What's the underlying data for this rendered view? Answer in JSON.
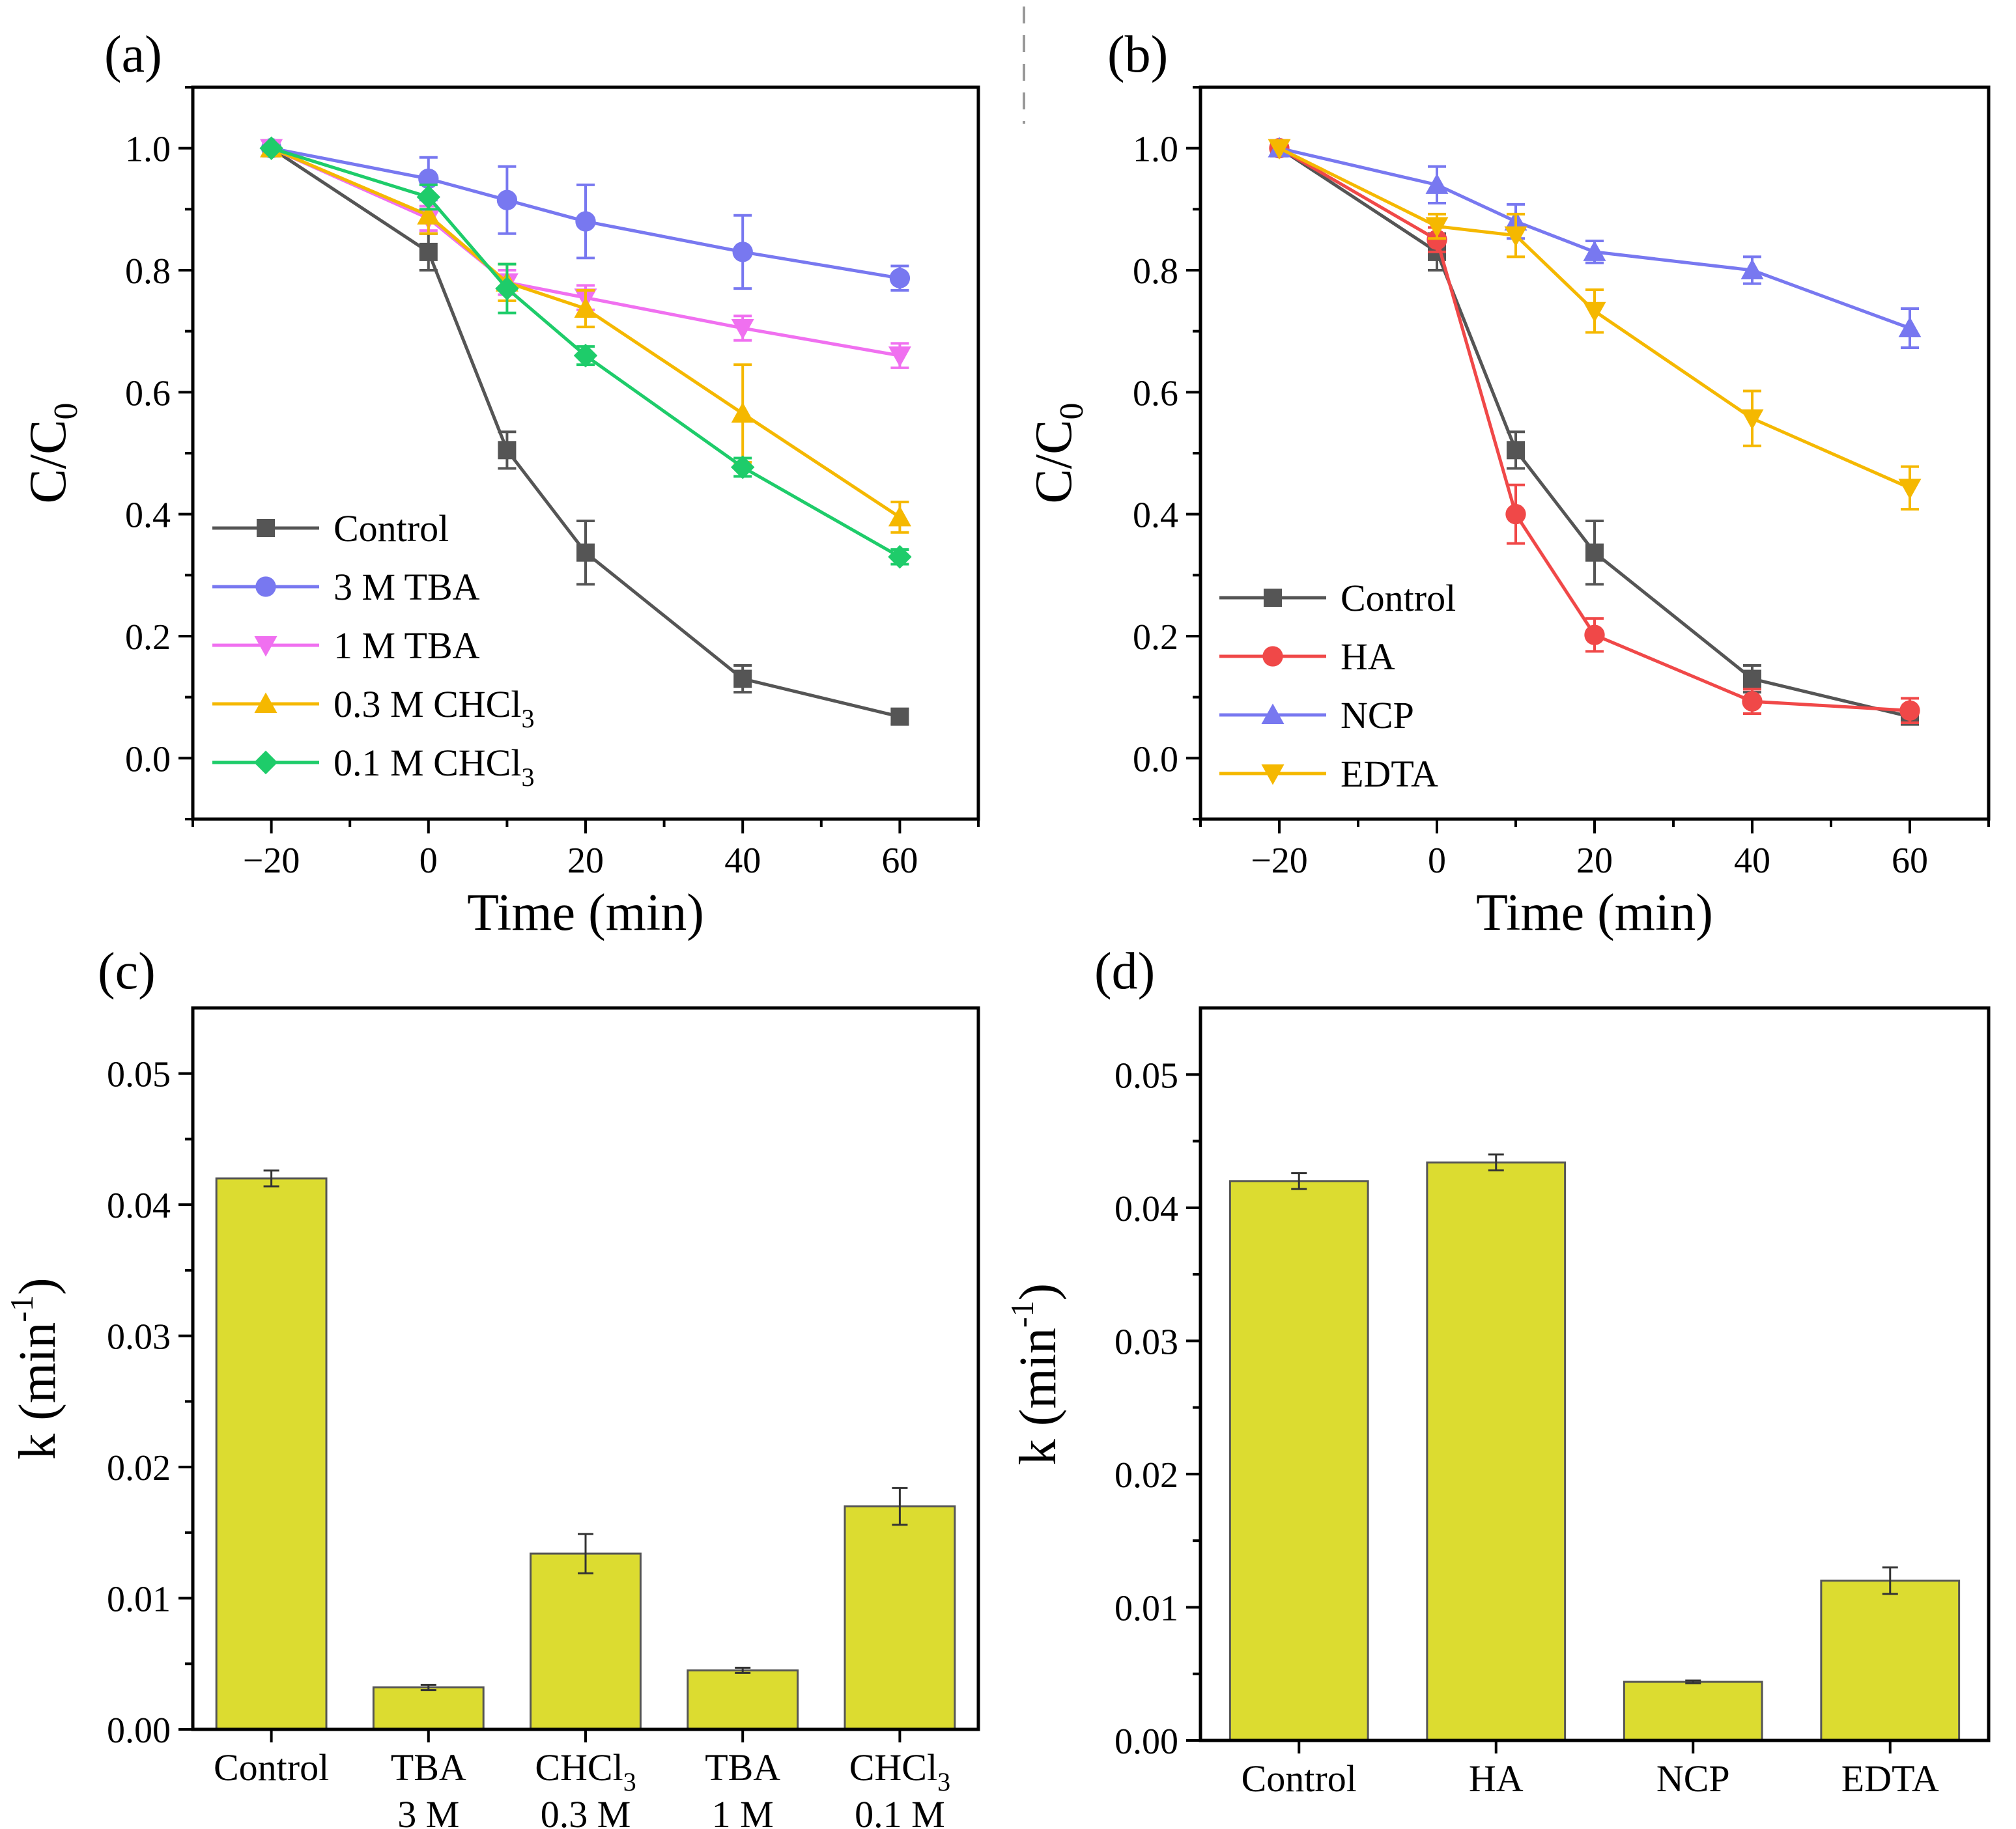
{
  "chart_data": [
    {
      "panel": "(a)",
      "type": "line",
      "xlabel": "Time (min)",
      "ylabel_main": "C/C",
      "ylabel_sub": "0",
      "xlim": [
        -30,
        70
      ],
      "ylim": [
        -0.1,
        1.1
      ],
      "xticks": [
        -20,
        0,
        20,
        40,
        60
      ],
      "yticks": [
        0.0,
        0.2,
        0.4,
        0.6,
        0.8,
        1.0
      ],
      "xtick_labels": [
        "−20",
        "0",
        "20",
        "40",
        "60"
      ],
      "ytick_labels": [
        "0.0",
        "0.2",
        "0.4",
        "0.6",
        "0.8",
        "1.0"
      ],
      "legend_position": "bottom-left",
      "x": [
        -20,
        0,
        10,
        20,
        40,
        60
      ],
      "series": [
        {
          "name": "Control",
          "name_main": "Control",
          "name_sub": "",
          "color": "#555555",
          "marker": "square",
          "values": [
            1.0,
            0.83,
            0.505,
            0.337,
            0.13,
            0.068
          ],
          "errors": [
            0.0,
            0.03,
            0.03,
            0.052,
            0.022,
            0.012
          ]
        },
        {
          "name": "3 M TBA",
          "name_main": "3 M TBA",
          "name_sub": "",
          "color": "#7878F0",
          "marker": "circle",
          "values": [
            1.0,
            0.95,
            0.915,
            0.88,
            0.83,
            0.787
          ],
          "errors": [
            0.0,
            0.035,
            0.055,
            0.06,
            0.06,
            0.02
          ]
        },
        {
          "name": "1 M TBA",
          "name_main": "1 M TBA",
          "name_sub": "",
          "color": "#F070F0",
          "marker": "triangle-down",
          "values": [
            1.0,
            0.885,
            0.78,
            0.755,
            0.705,
            0.66
          ],
          "errors": [
            0.0,
            0.02,
            0.02,
            0.02,
            0.02,
            0.02
          ]
        },
        {
          "name": "0.3 M CHCl3",
          "name_main": "0.3 M CHCl",
          "name_sub": "3",
          "color": "#F5B800",
          "marker": "triangle-up",
          "values": [
            1.0,
            0.89,
            0.78,
            0.737,
            0.565,
            0.395
          ],
          "errors": [
            0.0,
            0.03,
            0.03,
            0.03,
            0.08,
            0.025
          ]
        },
        {
          "name": "0.1 M CHCl3",
          "name_main": "0.1 M CHCl",
          "name_sub": "3",
          "color": "#1ECC6A",
          "marker": "diamond",
          "values": [
            1.0,
            0.92,
            0.77,
            0.66,
            0.477,
            0.33
          ],
          "errors": [
            0.0,
            0.02,
            0.04,
            0.015,
            0.015,
            0.012
          ]
        }
      ]
    },
    {
      "panel": "(b)",
      "type": "line",
      "xlabel": "Time (min)",
      "ylabel_main": "C/C",
      "ylabel_sub": "0",
      "xlim": [
        -30,
        70
      ],
      "ylim": [
        -0.1,
        1.1
      ],
      "xticks": [
        -20,
        0,
        20,
        40,
        60
      ],
      "yticks": [
        0.0,
        0.2,
        0.4,
        0.6,
        0.8,
        1.0
      ],
      "xtick_labels": [
        "−20",
        "0",
        "20",
        "40",
        "60"
      ],
      "ytick_labels": [
        "0.0",
        "0.2",
        "0.4",
        "0.6",
        "0.8",
        "1.0"
      ],
      "legend_position": "bottom-left",
      "x": [
        -20,
        0,
        10,
        20,
        40,
        60
      ],
      "series": [
        {
          "name": "Control",
          "name_main": "Control",
          "name_sub": "",
          "color": "#555555",
          "marker": "square",
          "values": [
            1.0,
            0.83,
            0.505,
            0.337,
            0.13,
            0.068
          ],
          "errors": [
            0.0,
            0.03,
            0.03,
            0.052,
            0.022,
            0.012
          ]
        },
        {
          "name": "HA",
          "name_main": "HA",
          "name_sub": "",
          "color": "#F04848",
          "marker": "circle",
          "values": [
            1.0,
            0.85,
            0.4,
            0.202,
            0.093,
            0.078
          ],
          "errors": [
            0.0,
            0.02,
            0.048,
            0.027,
            0.02,
            0.02
          ]
        },
        {
          "name": "NCP",
          "name_main": "NCP",
          "name_sub": "",
          "color": "#7878F0",
          "marker": "triangle-up",
          "values": [
            1.0,
            0.94,
            0.88,
            0.83,
            0.8,
            0.705
          ],
          "errors": [
            0.0,
            0.03,
            0.028,
            0.018,
            0.022,
            0.032
          ]
        },
        {
          "name": "EDTA",
          "name_main": "EDTA",
          "name_sub": "",
          "color": "#F5B800",
          "marker": "triangle-down",
          "values": [
            1.0,
            0.872,
            0.857,
            0.733,
            0.557,
            0.443
          ],
          "errors": [
            0.0,
            0.02,
            0.035,
            0.035,
            0.045,
            0.035
          ]
        }
      ]
    },
    {
      "panel": "(c)",
      "type": "bar",
      "ylabel_main": "k (min",
      "ylabel_sup": "-1",
      "ylabel_end": ")",
      "ylim": [
        0.0,
        0.055
      ],
      "yticks": [
        0.0,
        0.01,
        0.02,
        0.03,
        0.04,
        0.05
      ],
      "ytick_labels": [
        "0.00",
        "0.01",
        "0.02",
        "0.03",
        "0.04",
        "0.05"
      ],
      "bar_color": "#DCDC30",
      "categories": [
        "Control",
        "TBA 3 M",
        "CHCl3 0.3 M",
        "TBA 1 M",
        "CHCl3 0.1 M"
      ],
      "category_lines": [
        {
          "l1": "Control",
          "l1sub": "",
          "l2": ""
        },
        {
          "l1": "TBA",
          "l1sub": "",
          "l2": "3 M"
        },
        {
          "l1": "CHCl",
          "l1sub": "3",
          "l2": "0.3 M"
        },
        {
          "l1": "TBA",
          "l1sub": "",
          "l2": "1 M"
        },
        {
          "l1": "CHCl",
          "l1sub": "3",
          "l2": "0.1 M"
        }
      ],
      "values": [
        0.042,
        0.0032,
        0.0134,
        0.0045,
        0.017
      ],
      "errors": [
        0.0006,
        0.0002,
        0.0015,
        0.0002,
        0.0014
      ]
    },
    {
      "panel": "(d)",
      "type": "bar",
      "ylabel_main": "k (min",
      "ylabel_sup": "-1",
      "ylabel_end": ")",
      "ylim": [
        0.0,
        0.055
      ],
      "yticks": [
        0.0,
        0.01,
        0.02,
        0.03,
        0.04,
        0.05
      ],
      "ytick_labels": [
        "0.00",
        "0.01",
        "0.02",
        "0.03",
        "0.04",
        "0.05"
      ],
      "bar_color": "#DCDC30",
      "categories": [
        "Control",
        "HA",
        "NCP",
        "EDTA"
      ],
      "category_lines": [
        {
          "l1": "Control",
          "l1sub": "",
          "l2": ""
        },
        {
          "l1": "HA",
          "l1sub": "",
          "l2": ""
        },
        {
          "l1": "NCP",
          "l1sub": "",
          "l2": ""
        },
        {
          "l1": "EDTA",
          "l1sub": "",
          "l2": ""
        }
      ],
      "values": [
        0.042,
        0.0434,
        0.0044,
        0.012
      ],
      "errors": [
        0.0006,
        0.0006,
        0.0001,
        0.001
      ]
    }
  ]
}
